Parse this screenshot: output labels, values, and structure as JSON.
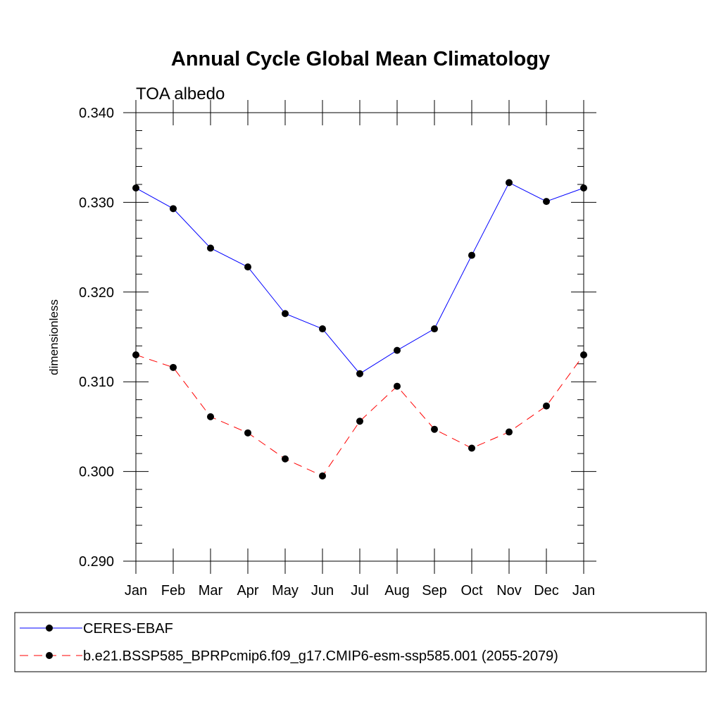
{
  "chart_data": {
    "type": "line",
    "title": "Annual Cycle Global Mean Climatology",
    "subtitle": "TOA albedo",
    "xlabel": "",
    "ylabel": "dimensionless",
    "categories": [
      "Jan",
      "Feb",
      "Mar",
      "Apr",
      "May",
      "Jun",
      "Jul",
      "Aug",
      "Sep",
      "Oct",
      "Nov",
      "Dec",
      "Jan"
    ],
    "ylim": [
      0.29,
      0.34
    ],
    "yticks": [
      "0.290",
      "0.300",
      "0.310",
      "0.320",
      "0.330",
      "0.340"
    ],
    "grid": false,
    "legend_position": "bottom",
    "series": [
      {
        "name": "CERES-EBAF",
        "color": "#0000ff",
        "line_style": "solid",
        "marker": "filled-circle",
        "values": [
          0.3316,
          0.3293,
          0.3249,
          0.3228,
          0.3176,
          0.3159,
          0.3109,
          0.3135,
          0.3159,
          0.3241,
          0.3322,
          0.3301,
          0.3316
        ]
      },
      {
        "name": "b.e21.BSSP585_BPRPcmip6.f09_g17.CMIP6-esm-ssp585.001 (2055-2079)",
        "color": "#ff0000",
        "line_style": "dashed",
        "marker": "filled-circle",
        "values": [
          0.313,
          0.3116,
          0.3061,
          0.3043,
          0.3014,
          0.2995,
          0.3056,
          0.3095,
          0.3047,
          0.3026,
          0.3044,
          0.3073,
          0.313
        ]
      }
    ]
  }
}
